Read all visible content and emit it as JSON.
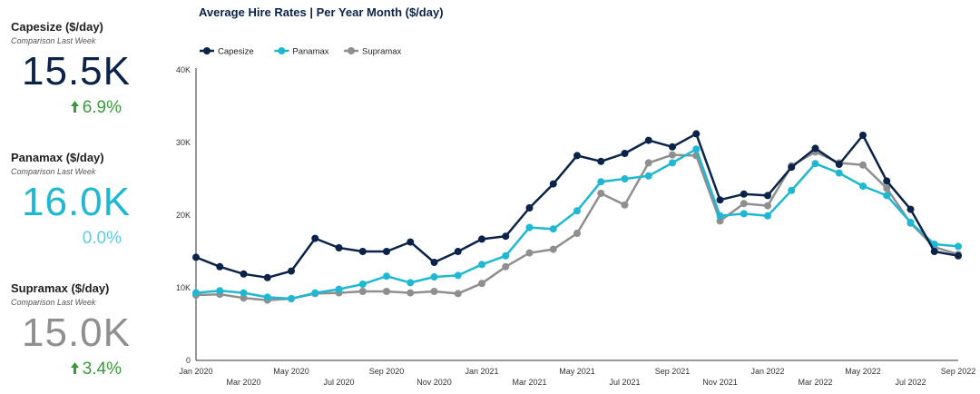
{
  "kpis": [
    {
      "title": "Capesize ($/day)",
      "subtitle": "Comparison Last Week",
      "value": "15.5K",
      "change": "6.9%",
      "direction": "up",
      "value_color": "#0b2348",
      "change_color": "#3a9a3a"
    },
    {
      "title": "Panamax ($/day)",
      "subtitle": "Comparison Last Week",
      "value": "16.0K",
      "change": "0.0%",
      "direction": "none",
      "value_color": "#1fb8d3",
      "change_color": "#5fcbe0"
    },
    {
      "title": "Supramax ($/day)",
      "subtitle": "Comparison Last Week",
      "value": "15.0K",
      "change": "3.4%",
      "direction": "up",
      "value_color": "#8f8f8f",
      "change_color": "#3a9a3a"
    }
  ],
  "chart_data": {
    "type": "line",
    "title": "Average Hire Rates | Per Year Month ($/day)",
    "legend_position": "top-left",
    "grid": false,
    "ylim": [
      0,
      40000
    ],
    "y_ticks": [
      0,
      10000,
      20000,
      30000,
      40000
    ],
    "y_tick_labels": [
      "0",
      "10K",
      "20K",
      "30K",
      "40K"
    ],
    "x": [
      "2020-01",
      "2020-02",
      "2020-03",
      "2020-04",
      "2020-05",
      "2020-06",
      "2020-07",
      "2020-08",
      "2020-09",
      "2020-10",
      "2020-11",
      "2020-12",
      "2021-01",
      "2021-02",
      "2021-03",
      "2021-04",
      "2021-05",
      "2021-06",
      "2021-07",
      "2021-08",
      "2021-09",
      "2021-10",
      "2021-11",
      "2021-12",
      "2022-01",
      "2022-02",
      "2022-03",
      "2022-04",
      "2022-05",
      "2022-06",
      "2022-07",
      "2022-08",
      "2022-09"
    ],
    "x_tick_labels_upper": [
      {
        "i": 0,
        "label": "Jan 2020"
      },
      {
        "i": 4,
        "label": "May 2020"
      },
      {
        "i": 8,
        "label": "Sep 2020"
      },
      {
        "i": 12,
        "label": "Jan 2021"
      },
      {
        "i": 16,
        "label": "May 2021"
      },
      {
        "i": 20,
        "label": "Sep 2021"
      },
      {
        "i": 24,
        "label": "Jan 2022"
      },
      {
        "i": 28,
        "label": "May 2022"
      },
      {
        "i": 32,
        "label": "Sep 2022"
      }
    ],
    "x_tick_labels_lower": [
      {
        "i": 2,
        "label": "Mar 2020"
      },
      {
        "i": 6,
        "label": "Jul 2020"
      },
      {
        "i": 10,
        "label": "Nov 2020"
      },
      {
        "i": 14,
        "label": "Mar 2021"
      },
      {
        "i": 18,
        "label": "Jul 2021"
      },
      {
        "i": 22,
        "label": "Nov 2021"
      },
      {
        "i": 26,
        "label": "Mar 2022"
      },
      {
        "i": 30,
        "label": "Jul 2022"
      }
    ],
    "series": [
      {
        "name": "Capesize",
        "color": "#0b2348",
        "values": [
          14200,
          12900,
          11900,
          11400,
          12300,
          16800,
          15500,
          15000,
          15000,
          16300,
          13500,
          15000,
          16700,
          17100,
          21000,
          24300,
          28200,
          27400,
          28500,
          30300,
          29400,
          31200,
          22100,
          22900,
          22700,
          26600,
          29200,
          27000,
          31000,
          24700,
          20800,
          15000,
          14400
        ]
      },
      {
        "name": "Panamax",
        "color": "#1fb8d3",
        "values": [
          9300,
          9600,
          9300,
          8700,
          8500,
          9300,
          9800,
          10500,
          11600,
          10700,
          11500,
          11700,
          13200,
          14400,
          18300,
          18100,
          20600,
          24600,
          25000,
          25400,
          27200,
          29100,
          19900,
          20200,
          19900,
          23400,
          27100,
          25800,
          24000,
          22700,
          19000,
          16000,
          15700
        ]
      },
      {
        "name": "Supramax",
        "color": "#8f8f8f",
        "values": [
          9000,
          9100,
          8600,
          8300,
          8500,
          9200,
          9300,
          9500,
          9500,
          9300,
          9500,
          9200,
          10600,
          12900,
          14800,
          15300,
          17500,
          23000,
          21400,
          27200,
          28300,
          28200,
          19200,
          21600,
          21300,
          26800,
          28700,
          27200,
          26900,
          23700,
          18900,
          15600,
          14600
        ]
      }
    ]
  }
}
